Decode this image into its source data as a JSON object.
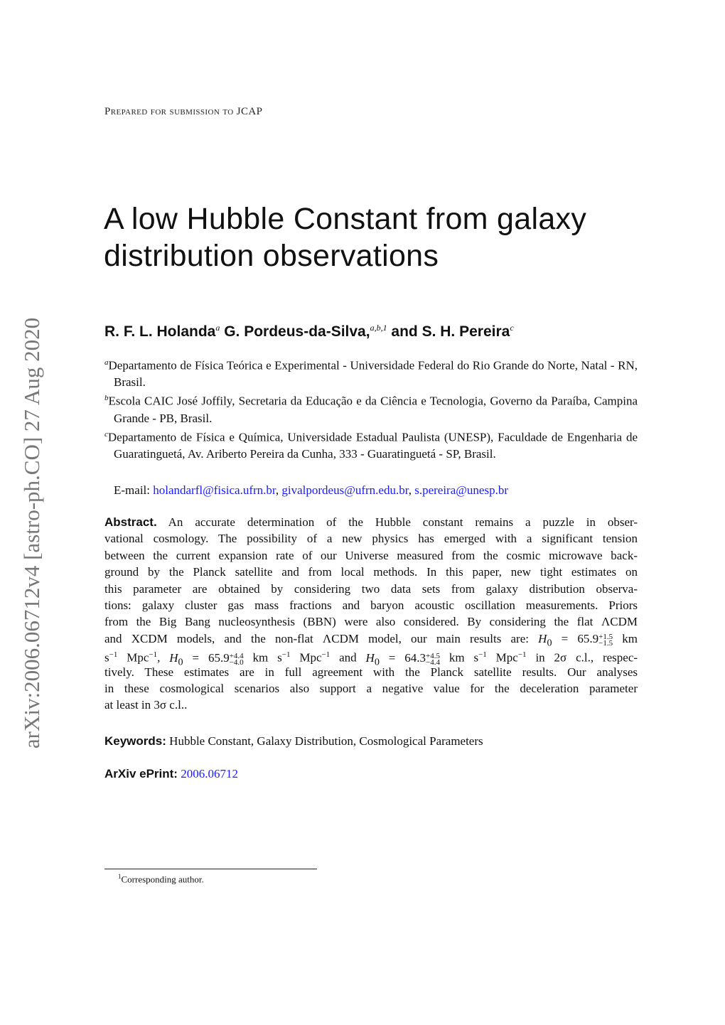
{
  "header": "Prepared for submission to JCAP",
  "title": [
    "A low Hubble Constant from galaxy",
    "distribution observations"
  ],
  "authors": [
    {
      "name": "R. F. L. Holanda",
      "sup": "a"
    },
    {
      "name": "G. Pordeus-da-Silva,",
      "sup": "a,b,1"
    },
    {
      "name": "and S. H. Pereira",
      "sup": "c"
    }
  ],
  "affiliations": [
    {
      "label": "a",
      "text": "Departamento de Física Teórica e Experimental - Universidade Federal do Rio Grande do Norte, Natal - RN, Brasil."
    },
    {
      "label": "b",
      "text": "Escola CAIC José Joffily, Secretaria da Educação e da Ciência e Tecnologia, Governo da Paraíba, Campina Grande - PB, Brasil."
    },
    {
      "label": "c",
      "text": "Departamento de Física e Química, Universidade Estadual Paulista (UNESP), Faculdade de Engenharia de Guaratinguetá, Av.  Ariberto Pereira da Cunha, 333 - Guaratinguetá - SP, Brasil."
    }
  ],
  "email": {
    "label": "E-mail:",
    "addresses": [
      "holandarfl@fisica.ufrn.br",
      "givalpordeus@ufrn.edu.br",
      "s.pereira@unesp.br"
    ]
  },
  "abstract": {
    "label": "Abstract.",
    "lines": [
      "An accurate determination of the Hubble constant remains a puzzle in obser-",
      "vational cosmology. The possibility of a new physics has emerged with a significant tension",
      "between the current expansion rate of our Universe measured from the cosmic microwave back-",
      "ground by the Planck satellite and from local methods. In this paper, new tight estimates on",
      "this parameter are obtained by considering two data sets from galaxy distribution observa-",
      "tions: galaxy cluster gas mass fractions and baryon acoustic oscillation measurements. Priors",
      "from the Big Bang nucleosynthesis (BBN) were also considered. By considering the flat ΛCDM",
      "and XCDM models, and the non-flat ΛCDM model, our main results are:",
      "",
      "tively. These estimates are in full agreement with the Planck satellite results. Our analyses",
      "in these cosmological scenarios also support a negative value for the deceleration parameter",
      "at least in 3σ c.l.."
    ],
    "results": [
      {
        "value": "65.9",
        "plus": "+1.5",
        "minus": "−1.5"
      },
      {
        "value": "65.9",
        "plus": "+4.4",
        "minus": "−4.0"
      },
      {
        "value": "64.3",
        "plus": "+4.5",
        "minus": "−4.4"
      }
    ],
    "symbol": "H",
    "symbol_sub": "0",
    "eq": "=",
    "km": "km",
    "s": "s",
    "mpc": "Mpc",
    "exp": "−1",
    "comma": ",",
    "and": "and",
    "tail": "in 2σ c.l., respec-"
  },
  "keywords": {
    "label": "Keywords:",
    "text": "Hubble Constant, Galaxy Distribution, Cosmological Parameters"
  },
  "eprint": {
    "label": "ArXiv ePrint:",
    "id": "2006.06712"
  },
  "footnote": {
    "mark": "1",
    "text": "Corresponding author."
  },
  "stamp": "arXiv:2006.06712v4  [astro-ph.CO]  27 Aug 2020",
  "colors": {
    "link": "#1a1aff",
    "stamp": "#777777"
  }
}
